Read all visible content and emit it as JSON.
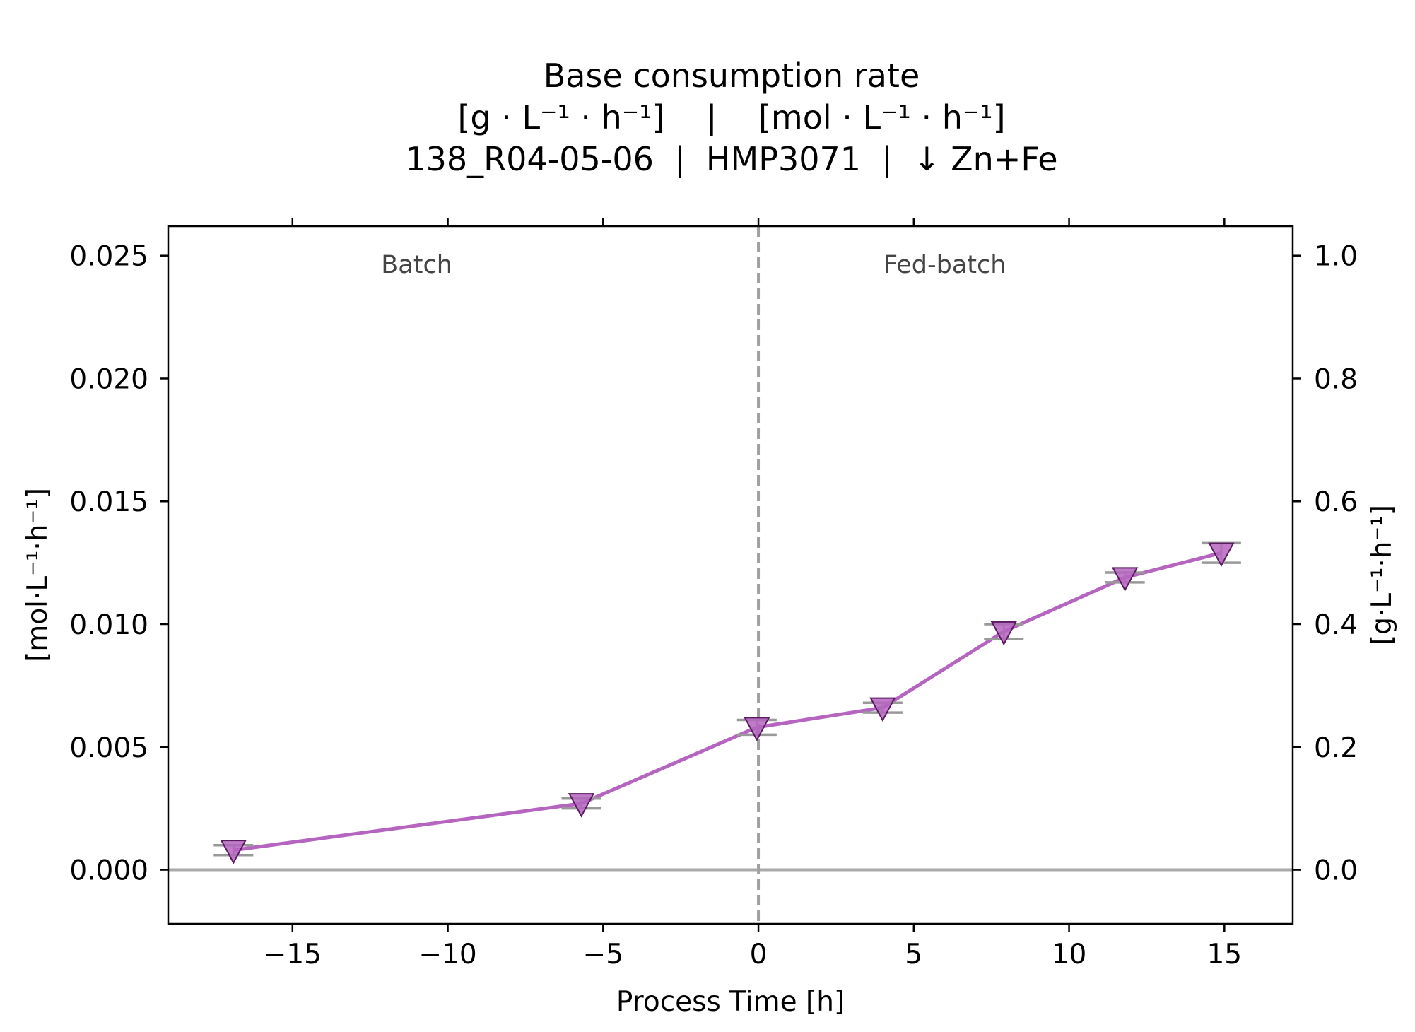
{
  "title": {
    "line1": "Base consumption rate",
    "line2": "[g · L⁻¹ · h⁻¹]    |    [mol · L⁻¹ · h⁻¹]",
    "line3": "138_R04-05-06  |  HMP3071  |  ↓ Zn+Fe"
  },
  "chart_data": {
    "type": "line",
    "xlabel": "Process Time [h]",
    "ylabel_left": "[mol·L⁻¹·h⁻¹]",
    "ylabel_right": "[g·L⁻¹·h⁻¹]",
    "xlim": [
      -19,
      17.2
    ],
    "ylim_left": [
      -0.0022,
      0.0262
    ],
    "ylim_right": [
      -0.088,
      1.048
    ],
    "x_ticks": [
      -15,
      -10,
      -5,
      0,
      5,
      10,
      15
    ],
    "x_tick_labels": [
      "−15",
      "−10",
      "−5",
      "0",
      "5",
      "10",
      "15"
    ],
    "y_left_ticks": [
      0.0,
      0.005,
      0.01,
      0.015,
      0.02,
      0.025
    ],
    "y_left_tick_labels": [
      "0.000",
      "0.005",
      "0.010",
      "0.015",
      "0.020",
      "0.025"
    ],
    "y_right_ticks": [
      0.0,
      0.2,
      0.4,
      0.6,
      0.8,
      1.0
    ],
    "y_right_tick_labels": [
      "0.0",
      "0.2",
      "0.4",
      "0.6",
      "0.8",
      "1.0"
    ],
    "phase_divider_x": 0,
    "phase_labels": [
      {
        "text": "Batch",
        "x": -11,
        "y": 0.0243
      },
      {
        "text": "Fed-batch",
        "x": 6,
        "y": 0.0243
      }
    ],
    "series": [
      {
        "color": "#b565bf",
        "marker": "triangle-down",
        "x": [
          -16.9,
          -5.7,
          -0.05,
          4.0,
          7.9,
          11.8,
          14.9
        ],
        "y": [
          0.0008,
          0.0027,
          0.0058,
          0.0066,
          0.0097,
          0.0119,
          0.0129
        ],
        "y_err": [
          0.0002,
          0.0002,
          0.0003,
          0.0002,
          0.0003,
          0.0002,
          0.0004
        ]
      }
    ]
  }
}
